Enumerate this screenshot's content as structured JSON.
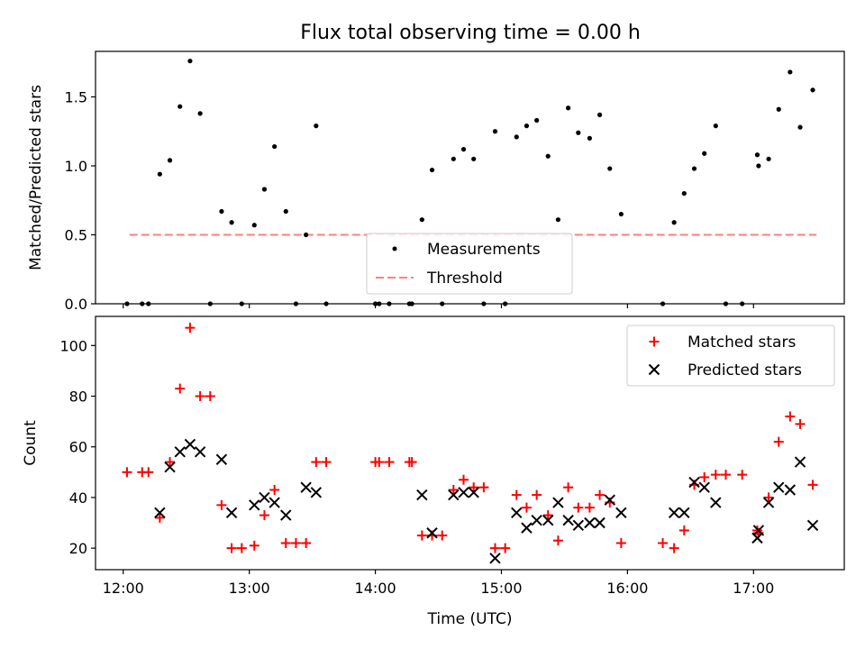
{
  "title": "Flux total observing time = 0.00 h",
  "top": {
    "ylabel": "Matched/Predicted stars",
    "ylim": [
      0,
      1.83
    ],
    "yticks": [
      {
        "v": 0,
        "label": "0.0"
      },
      {
        "v": 0.5,
        "label": "0.5"
      },
      {
        "v": 1.0,
        "label": "1.0"
      },
      {
        "v": 1.5,
        "label": "1.5"
      }
    ],
    "legend": {
      "placement": "lower-center",
      "measurements": "Measurements",
      "threshold": "Threshold"
    },
    "threshold": {
      "x0": 12.05,
      "x1": 17.5,
      "y": 0.5,
      "color": "#ff7f7f"
    },
    "measurement_color": "#000000",
    "measurements": [
      [
        12.03,
        0
      ],
      [
        12.15,
        0
      ],
      [
        12.2,
        0
      ],
      [
        12.29,
        0.94
      ],
      [
        12.37,
        1.04
      ],
      [
        12.45,
        1.43
      ],
      [
        12.53,
        1.76
      ],
      [
        12.61,
        1.38
      ],
      [
        12.69,
        0
      ],
      [
        12.78,
        0.67
      ],
      [
        12.86,
        0.59
      ],
      [
        12.94,
        0
      ],
      [
        13.04,
        0.57
      ],
      [
        13.12,
        0.83
      ],
      [
        13.2,
        1.14
      ],
      [
        13.29,
        0.67
      ],
      [
        13.37,
        0
      ],
      [
        13.45,
        0.5
      ],
      [
        13.53,
        1.29
      ],
      [
        13.61,
        0
      ],
      [
        14.0,
        0
      ],
      [
        14.03,
        0
      ],
      [
        14.11,
        0
      ],
      [
        14.27,
        0
      ],
      [
        14.29,
        0
      ],
      [
        14.37,
        0.61
      ],
      [
        14.45,
        0.97
      ],
      [
        14.53,
        0
      ],
      [
        14.62,
        1.05
      ],
      [
        14.7,
        1.12
      ],
      [
        14.78,
        1.05
      ],
      [
        14.86,
        0
      ],
      [
        14.95,
        1.25
      ],
      [
        15.03,
        0
      ],
      [
        15.12,
        1.21
      ],
      [
        15.2,
        1.29
      ],
      [
        15.28,
        1.33
      ],
      [
        15.37,
        1.07
      ],
      [
        15.45,
        0.61
      ],
      [
        15.53,
        1.42
      ],
      [
        15.61,
        1.24
      ],
      [
        15.7,
        1.2
      ],
      [
        15.78,
        1.37
      ],
      [
        15.86,
        0.98
      ],
      [
        15.95,
        0.65
      ],
      [
        16.28,
        0
      ],
      [
        16.37,
        0.59
      ],
      [
        16.45,
        0.8
      ],
      [
        16.53,
        0.98
      ],
      [
        16.61,
        1.09
      ],
      [
        16.7,
        1.29
      ],
      [
        16.78,
        0
      ],
      [
        16.91,
        0
      ],
      [
        17.03,
        1.08
      ],
      [
        17.04,
        1.0
      ],
      [
        17.12,
        1.05
      ],
      [
        17.2,
        1.41
      ],
      [
        17.29,
        1.68
      ],
      [
        17.37,
        1.28
      ],
      [
        17.47,
        1.55
      ]
    ]
  },
  "bottom": {
    "ylabel": "Count",
    "xlabel": "Time (UTC)",
    "ylim": [
      11.5,
      111.5
    ],
    "yticks": [
      {
        "v": 20,
        "label": "20"
      },
      {
        "v": 40,
        "label": "40"
      },
      {
        "v": 60,
        "label": "60"
      },
      {
        "v": 80,
        "label": "80"
      },
      {
        "v": 100,
        "label": "100"
      }
    ],
    "legend": {
      "placement": "upper-right",
      "matched": "Matched stars",
      "predicted": "Predicted stars"
    },
    "matched_color": "#ff0000",
    "predicted_color": "#000000"
  },
  "xlim": [
    11.78,
    17.72
  ],
  "xticks": [
    {
      "v": 12,
      "label": "12:00"
    },
    {
      "v": 13,
      "label": "13:00"
    },
    {
      "v": 14,
      "label": "14:00"
    },
    {
      "v": 15,
      "label": "15:00"
    },
    {
      "v": 16,
      "label": "16:00"
    },
    {
      "v": 17,
      "label": "17:00"
    }
  ],
  "chart_data": [
    {
      "type": "scatter",
      "title": "Flux total observing time = 0.00 h",
      "xlabel": "",
      "ylabel": "Matched/Predicted stars",
      "series": [
        {
          "name": "Measurements",
          "ref": "top.measurements"
        },
        {
          "name": "Threshold",
          "value": 0.5
        }
      ]
    },
    {
      "type": "scatter",
      "xlabel": "Time (UTC)",
      "ylabel": "Count",
      "series": [
        {
          "name": "Matched stars",
          "points": [
            [
              12.03,
              50
            ],
            [
              12.15,
              50
            ],
            [
              12.2,
              50
            ],
            [
              12.29,
              32
            ],
            [
              12.37,
              54
            ],
            [
              12.45,
              83
            ],
            [
              12.53,
              107
            ],
            [
              12.61,
              80
            ],
            [
              12.69,
              80
            ],
            [
              12.78,
              37
            ],
            [
              12.86,
              20
            ],
            [
              12.94,
              20
            ],
            [
              13.04,
              21
            ],
            [
              13.12,
              33
            ],
            [
              13.2,
              43
            ],
            [
              13.29,
              22
            ],
            [
              13.37,
              22
            ],
            [
              13.45,
              22
            ],
            [
              13.53,
              54
            ],
            [
              13.61,
              54
            ],
            [
              14.0,
              54
            ],
            [
              14.03,
              54
            ],
            [
              14.11,
              54
            ],
            [
              14.27,
              54
            ],
            [
              14.29,
              54
            ],
            [
              14.37,
              25
            ],
            [
              14.45,
              25
            ],
            [
              14.53,
              25
            ],
            [
              14.62,
              43
            ],
            [
              14.7,
              47
            ],
            [
              14.78,
              44
            ],
            [
              14.86,
              44
            ],
            [
              14.95,
              20
            ],
            [
              15.03,
              20
            ],
            [
              15.12,
              41
            ],
            [
              15.2,
              36
            ],
            [
              15.28,
              41
            ],
            [
              15.37,
              33
            ],
            [
              15.45,
              23
            ],
            [
              15.53,
              44
            ],
            [
              15.61,
              36
            ],
            [
              15.7,
              36
            ],
            [
              15.78,
              41
            ],
            [
              15.86,
              38
            ],
            [
              15.95,
              22
            ],
            [
              16.28,
              22
            ],
            [
              16.37,
              20
            ],
            [
              16.45,
              27
            ],
            [
              16.53,
              45
            ],
            [
              16.61,
              48
            ],
            [
              16.7,
              49
            ],
            [
              16.78,
              49
            ],
            [
              16.91,
              49
            ],
            [
              17.03,
              27
            ],
            [
              17.04,
              26
            ],
            [
              17.12,
              40
            ],
            [
              17.2,
              62
            ],
            [
              17.29,
              72
            ],
            [
              17.37,
              69
            ],
            [
              17.47,
              45
            ]
          ]
        },
        {
          "name": "Predicted stars",
          "points": [
            [
              12.29,
              34
            ],
            [
              12.37,
              52
            ],
            [
              12.45,
              58
            ],
            [
              12.53,
              61
            ],
            [
              12.61,
              58
            ],
            [
              12.78,
              55
            ],
            [
              12.86,
              34
            ],
            [
              13.04,
              37
            ],
            [
              13.12,
              40
            ],
            [
              13.2,
              38
            ],
            [
              13.29,
              33
            ],
            [
              13.45,
              44
            ],
            [
              13.53,
              42
            ],
            [
              14.37,
              41
            ],
            [
              14.45,
              26
            ],
            [
              14.62,
              41
            ],
            [
              14.7,
              42
            ],
            [
              14.78,
              42
            ],
            [
              14.95,
              16
            ],
            [
              15.12,
              34
            ],
            [
              15.2,
              28
            ],
            [
              15.28,
              31
            ],
            [
              15.37,
              31
            ],
            [
              15.45,
              38
            ],
            [
              15.53,
              31
            ],
            [
              15.61,
              29
            ],
            [
              15.7,
              30
            ],
            [
              15.78,
              30
            ],
            [
              15.86,
              39
            ],
            [
              15.95,
              34
            ],
            [
              16.37,
              34
            ],
            [
              16.45,
              34
            ],
            [
              16.53,
              46
            ],
            [
              16.61,
              44
            ],
            [
              16.7,
              38
            ],
            [
              17.03,
              24
            ],
            [
              17.04,
              27
            ],
            [
              17.12,
              38
            ],
            [
              17.2,
              44
            ],
            [
              17.29,
              43
            ],
            [
              17.37,
              54
            ],
            [
              17.47,
              29
            ]
          ]
        }
      ]
    }
  ]
}
